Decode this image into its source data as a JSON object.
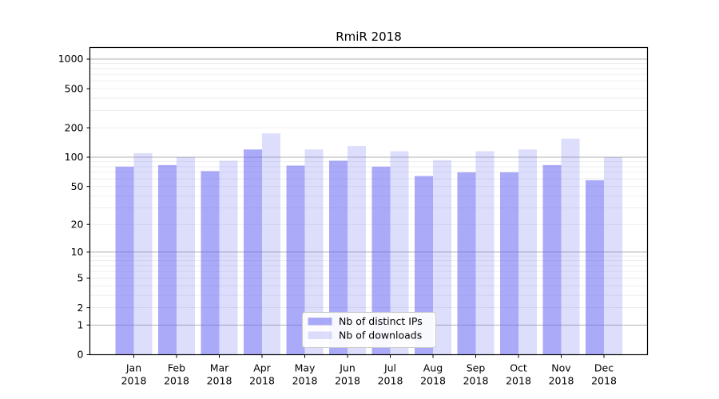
{
  "chart_data": {
    "type": "bar",
    "title": "RmiR 2018",
    "yscale": "symlog",
    "categories": [
      "Jan",
      "Feb",
      "Mar",
      "Apr",
      "May",
      "Jun",
      "Jul",
      "Aug",
      "Sep",
      "Oct",
      "Nov",
      "Dec"
    ],
    "category_year": "2018",
    "series": [
      {
        "name": "Nb of distinct IPs",
        "base_color": "#6464f2",
        "alpha": 0.55,
        "values": [
          80,
          83,
          72,
          120,
          82,
          92,
          80,
          64,
          70,
          70,
          83,
          58
        ]
      },
      {
        "name": "Nb of downloads",
        "base_color": "#6464f2",
        "alpha": 0.22,
        "values": [
          110,
          100,
          92,
          175,
          120,
          130,
          115,
          93,
          115,
          120,
          155,
          100
        ]
      }
    ],
    "y_ticks": [
      0,
      1,
      2,
      5,
      10,
      20,
      50,
      100,
      200,
      500,
      1000
    ],
    "ylim": [
      0,
      1311
    ],
    "grid": "on",
    "major_grid_color": "#b2b2b2",
    "minor_grid_color": "#e9e9e9",
    "legend_position": "lower center",
    "legend_labels": [
      "Nb of distinct IPs",
      "Nb of downloads"
    ]
  }
}
